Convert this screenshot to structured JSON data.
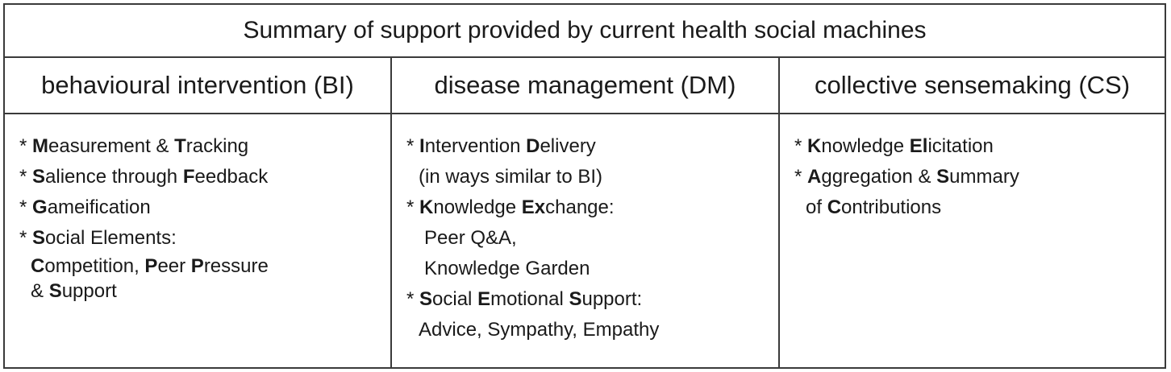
{
  "title": "Summary of support provided by current health social machines",
  "columns": [
    {
      "heading": "behavioural intervention (BI)",
      "items": [
        {
          "segments": [
            [
              "* ",
              false
            ],
            [
              "M",
              true
            ],
            [
              "easurement & ",
              false
            ],
            [
              "T",
              true
            ],
            [
              "racking",
              false
            ]
          ]
        },
        {
          "segments": [
            [
              "* ",
              false
            ],
            [
              "S",
              true
            ],
            [
              "alience through ",
              false
            ],
            [
              "F",
              true
            ],
            [
              "eedback",
              false
            ]
          ]
        },
        {
          "segments": [
            [
              "* ",
              false
            ],
            [
              "G",
              true
            ],
            [
              "ameification",
              false
            ]
          ]
        },
        {
          "segments": [
            [
              "* ",
              false
            ],
            [
              "S",
              true
            ],
            [
              "ocial Elements:",
              false
            ]
          ]
        },
        {
          "segments": [
            [
              "C",
              true
            ],
            [
              "ompetition, ",
              false
            ],
            [
              "P",
              true
            ],
            [
              "eer ",
              false
            ],
            [
              "P",
              true
            ],
            [
              "ressure",
              false
            ]
          ]
        },
        {
          "segments": [
            [
              "& ",
              false
            ],
            [
              "S",
              true
            ],
            [
              "upport",
              false
            ]
          ]
        }
      ]
    },
    {
      "heading": "disease management (DM)",
      "items": [
        {
          "segments": [
            [
              "* ",
              false
            ],
            [
              "I",
              true
            ],
            [
              "ntervention ",
              false
            ],
            [
              "D",
              true
            ],
            [
              "elivery",
              false
            ]
          ]
        },
        {
          "segments": [
            [
              "(in ways similar to BI)",
              false
            ]
          ]
        },
        {
          "segments": [
            [
              "* ",
              false
            ],
            [
              "K",
              true
            ],
            [
              "nowledge ",
              false
            ],
            [
              "Ex",
              true
            ],
            [
              "change:",
              false
            ]
          ]
        },
        {
          "segments": [
            [
              "Peer Q&A,",
              false
            ]
          ]
        },
        {
          "segments": [
            [
              "Knowledge Garden",
              false
            ]
          ]
        },
        {
          "segments": [
            [
              "* ",
              false
            ],
            [
              "S",
              true
            ],
            [
              "ocial ",
              false
            ],
            [
              "E",
              true
            ],
            [
              "motional ",
              false
            ],
            [
              "S",
              true
            ],
            [
              "upport:",
              false
            ]
          ]
        },
        {
          "segments": [
            [
              "Advice, Sympathy, Empathy",
              false
            ]
          ]
        }
      ]
    },
    {
      "heading": "collective sensemaking (CS)",
      "items": [
        {
          "segments": [
            [
              "* ",
              false
            ],
            [
              "K",
              true
            ],
            [
              "nowledge ",
              false
            ],
            [
              "El",
              true
            ],
            [
              "icitation",
              false
            ]
          ]
        },
        {
          "segments": [
            [
              "* ",
              false
            ],
            [
              "A",
              true
            ],
            [
              "ggregation & ",
              false
            ],
            [
              "S",
              true
            ],
            [
              "ummary",
              false
            ]
          ]
        },
        {
          "segments": [
            [
              "of ",
              false
            ],
            [
              "C",
              true
            ],
            [
              "ontributions",
              false
            ]
          ]
        }
      ]
    }
  ]
}
